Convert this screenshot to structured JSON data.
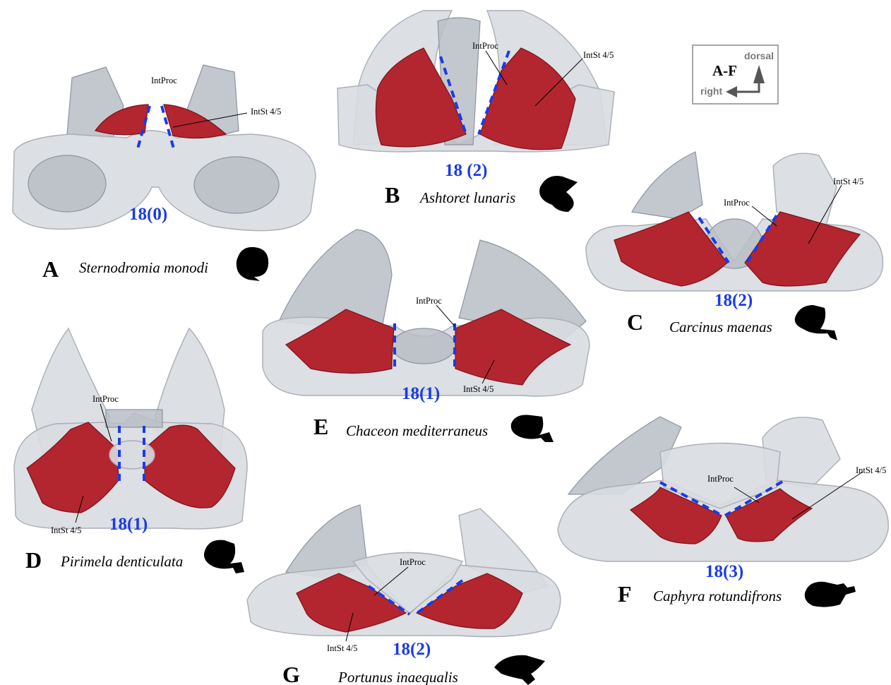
{
  "orientation": {
    "title": "A-F",
    "up_label": "dorsal",
    "side_label": "right"
  },
  "colors": {
    "muscle": "#b3262f",
    "dash": "#1a3ae8",
    "bone": "#d8dbe0"
  },
  "panels": [
    {
      "letter": "A",
      "species": "Sternodromia monodi",
      "formula": "18(0)",
      "intproc": "IntProc",
      "intst": "IntSt 4/5"
    },
    {
      "letter": "B",
      "species": "Ashtoret lunaris",
      "formula": "18 (2)",
      "intproc": "IntProc",
      "intst": "IntSt 4/5"
    },
    {
      "letter": "C",
      "species": "Carcinus maenas",
      "formula": "18(2)",
      "intproc": "IntProc",
      "intst": "IntSt 4/5"
    },
    {
      "letter": "D",
      "species": "Pirimela denticulata",
      "formula": "18(1)",
      "intproc": "IntProc",
      "intst": "IntSt 4/5"
    },
    {
      "letter": "E",
      "species": "Chaceon mediterraneus",
      "formula": "18(1)",
      "intproc": "IntProc",
      "intst": "IntSt 4/5"
    },
    {
      "letter": "F",
      "species": "Caphyra rotundifrons",
      "formula": "18(3)",
      "intproc": "IntProc",
      "intst": "IntSt 4/5"
    },
    {
      "letter": "G",
      "species": "Portunus inaequalis",
      "formula": "18(2)",
      "intproc": "IntProc",
      "intst": "IntSt 4/5"
    }
  ]
}
